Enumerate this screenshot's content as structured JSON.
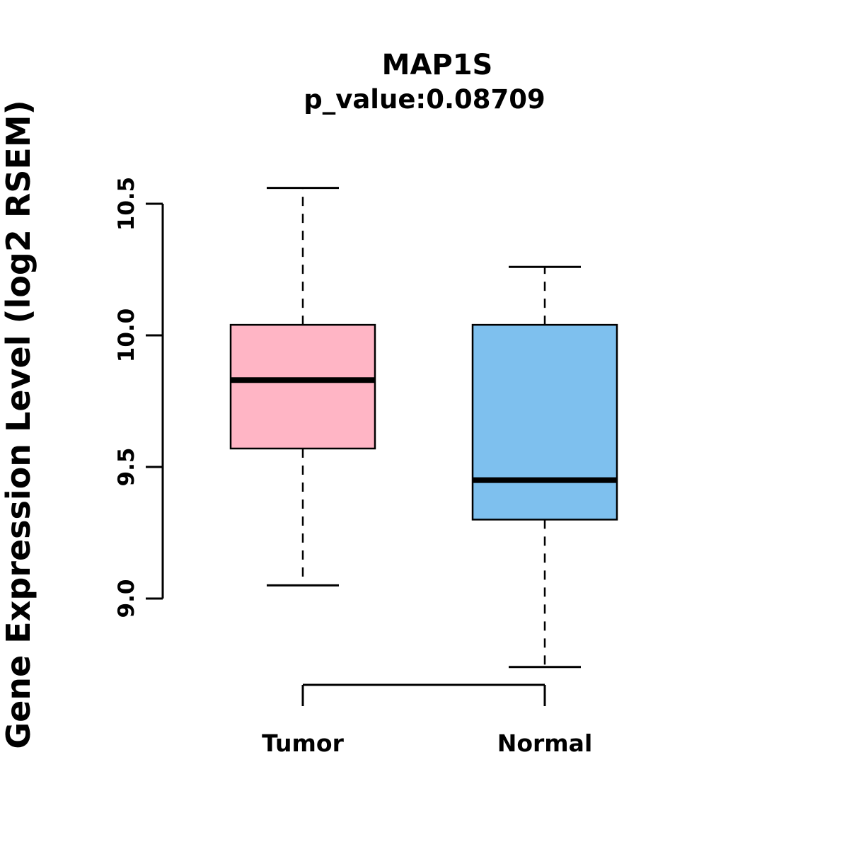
{
  "chart_data": {
    "type": "boxplot",
    "title": "MAP1S",
    "subtitle": "p_value:0.08709",
    "ylabel": "Gene Expression Level (log2 RSEM)",
    "axis_range": [
      9.0,
      10.5
    ],
    "yticks": [
      9.0,
      9.5,
      10.0,
      10.5
    ],
    "ytick_labels": [
      "9.0",
      "9.5",
      "10.0",
      "10.5"
    ],
    "categories": [
      "Tumor",
      "Normal"
    ],
    "legend": "none",
    "grid": false,
    "series": [
      {
        "name": "Tumor",
        "color": "#FFB5C5",
        "whisker_low": 9.05,
        "q1": 9.57,
        "median": 9.83,
        "q3": 10.04,
        "whisker_high": 10.56
      },
      {
        "name": "Normal",
        "color": "#7EC0EE",
        "whisker_low": 8.74,
        "q1": 9.3,
        "median": 9.45,
        "q3": 10.04,
        "whisker_high": 10.26
      }
    ]
  }
}
